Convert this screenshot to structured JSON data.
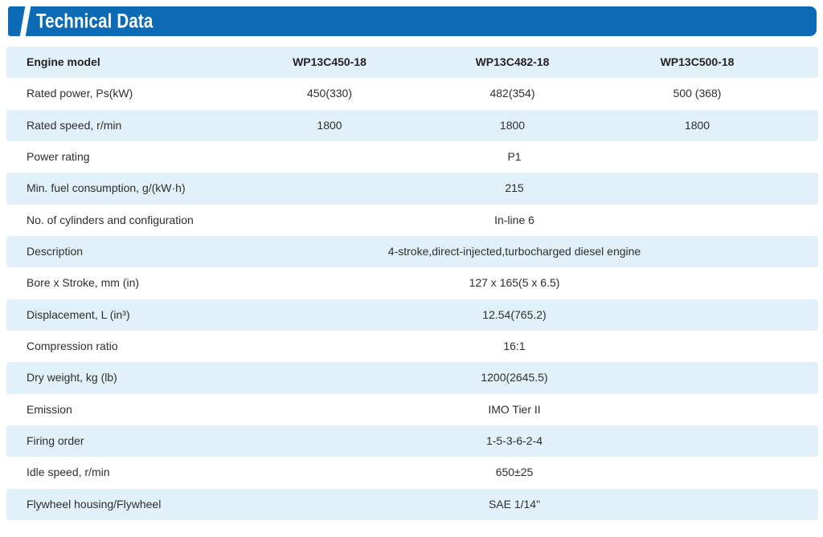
{
  "header": {
    "title": "Technical Data"
  },
  "colors": {
    "banner_blue": "#0d6ab4",
    "row_light_blue": "#e2f1f9",
    "text_dark": "#2e2e2e",
    "banner_text": "#ffffff"
  },
  "table": {
    "header": {
      "label": "Engine model",
      "columns": [
        "WP13C450-18",
        "WP13C482-18",
        "WP13C500-18"
      ]
    },
    "rows": [
      {
        "label": "Rated power, Ps(kW)",
        "values": [
          "450(330)",
          "482(354)",
          "500 (368)"
        ]
      },
      {
        "label": "Rated speed, r/min",
        "values": [
          "1800",
          "1800",
          "1800"
        ]
      },
      {
        "label": "Power rating",
        "value": "P1"
      },
      {
        "label": "Min. fuel consumption, g/(kW·h)",
        "value": "215"
      },
      {
        "label": "No. of cylinders and configuration",
        "value": "In-line 6"
      },
      {
        "label": "Description",
        "value": "4-stroke,direct-injected,turbocharged diesel engine"
      },
      {
        "label": "Bore x Stroke, mm (in)",
        "value": "127 x 165(5 x 6.5)"
      },
      {
        "label": "Displacement, L (in³)",
        "value": "12.54(765.2)"
      },
      {
        "label": "Compression ratio",
        "value": "16:1"
      },
      {
        "label": "Dry weight, kg (lb)",
        "value": "1200(2645.5)"
      },
      {
        "label": "Emission",
        "value": "IMO Tier II"
      },
      {
        "label": "Firing order",
        "value": "1-5-3-6-2-4"
      },
      {
        "label": "Idle speed, r/min",
        "value": "650±25"
      },
      {
        "label": "Flywheel housing/Flywheel",
        "value": "SAE 1/14\""
      }
    ]
  }
}
